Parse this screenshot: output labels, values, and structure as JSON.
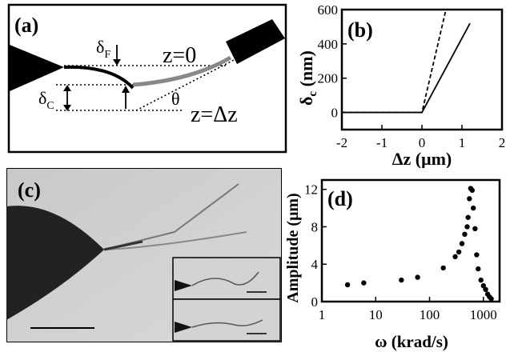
{
  "panels": {
    "a": {
      "label": "(a)",
      "delta_f": "δ",
      "delta_f_sub": "F",
      "delta_c": "δ",
      "delta_c_sub": "C",
      "z0": "z=0",
      "zdz": "z=Δz",
      "theta": "θ"
    },
    "b": {
      "label": "(b)",
      "ylabel": "δ",
      "ylabel_sub": "c",
      "ylabel_unit": " (nm)",
      "xlabel": "Δz (μm)"
    },
    "c": {
      "label": "(c)"
    },
    "d": {
      "label": "(d)",
      "ylabel": "Amplitude (μm)",
      "xlabel": "ω (krad/s)"
    }
  },
  "chart_data": [
    {
      "panel": "b",
      "type": "line",
      "xlim": [
        -2,
        2
      ],
      "ylim": [
        -100,
        600
      ],
      "x_ticks": [
        "-2",
        "-1",
        "0",
        "1",
        "2"
      ],
      "y_ticks": [
        "0",
        "200",
        "400",
        "600"
      ],
      "series": [
        {
          "style": "solid",
          "x": [
            -2,
            0,
            1.2
          ],
          "y": [
            0,
            0,
            520
          ]
        },
        {
          "style": "dashed",
          "x": [
            -2,
            0,
            0.6
          ],
          "y": [
            0,
            0,
            600
          ]
        }
      ]
    },
    {
      "panel": "d",
      "type": "scatter",
      "xscale": "log",
      "xlim": [
        1,
        2000
      ],
      "ylim": [
        0,
        13
      ],
      "x_ticks": [
        "1",
        "10",
        "100",
        "1000"
      ],
      "y_ticks": [
        "0",
        "4",
        "8",
        "12"
      ],
      "x": [
        3,
        6,
        30,
        60,
        180,
        300,
        350,
        400,
        450,
        500,
        520,
        550,
        580,
        620,
        650,
        700,
        750,
        800,
        900,
        1000,
        1100,
        1200,
        1300,
        1400
      ],
      "y": [
        1.8,
        2.0,
        2.3,
        2.6,
        3.6,
        4.8,
        5.3,
        6.2,
        7.2,
        8.0,
        9.0,
        11.0,
        12.1,
        11.9,
        10.0,
        7.8,
        5.0,
        3.5,
        2.3,
        1.7,
        1.3,
        0.8,
        0.5,
        0.3
      ]
    }
  ]
}
